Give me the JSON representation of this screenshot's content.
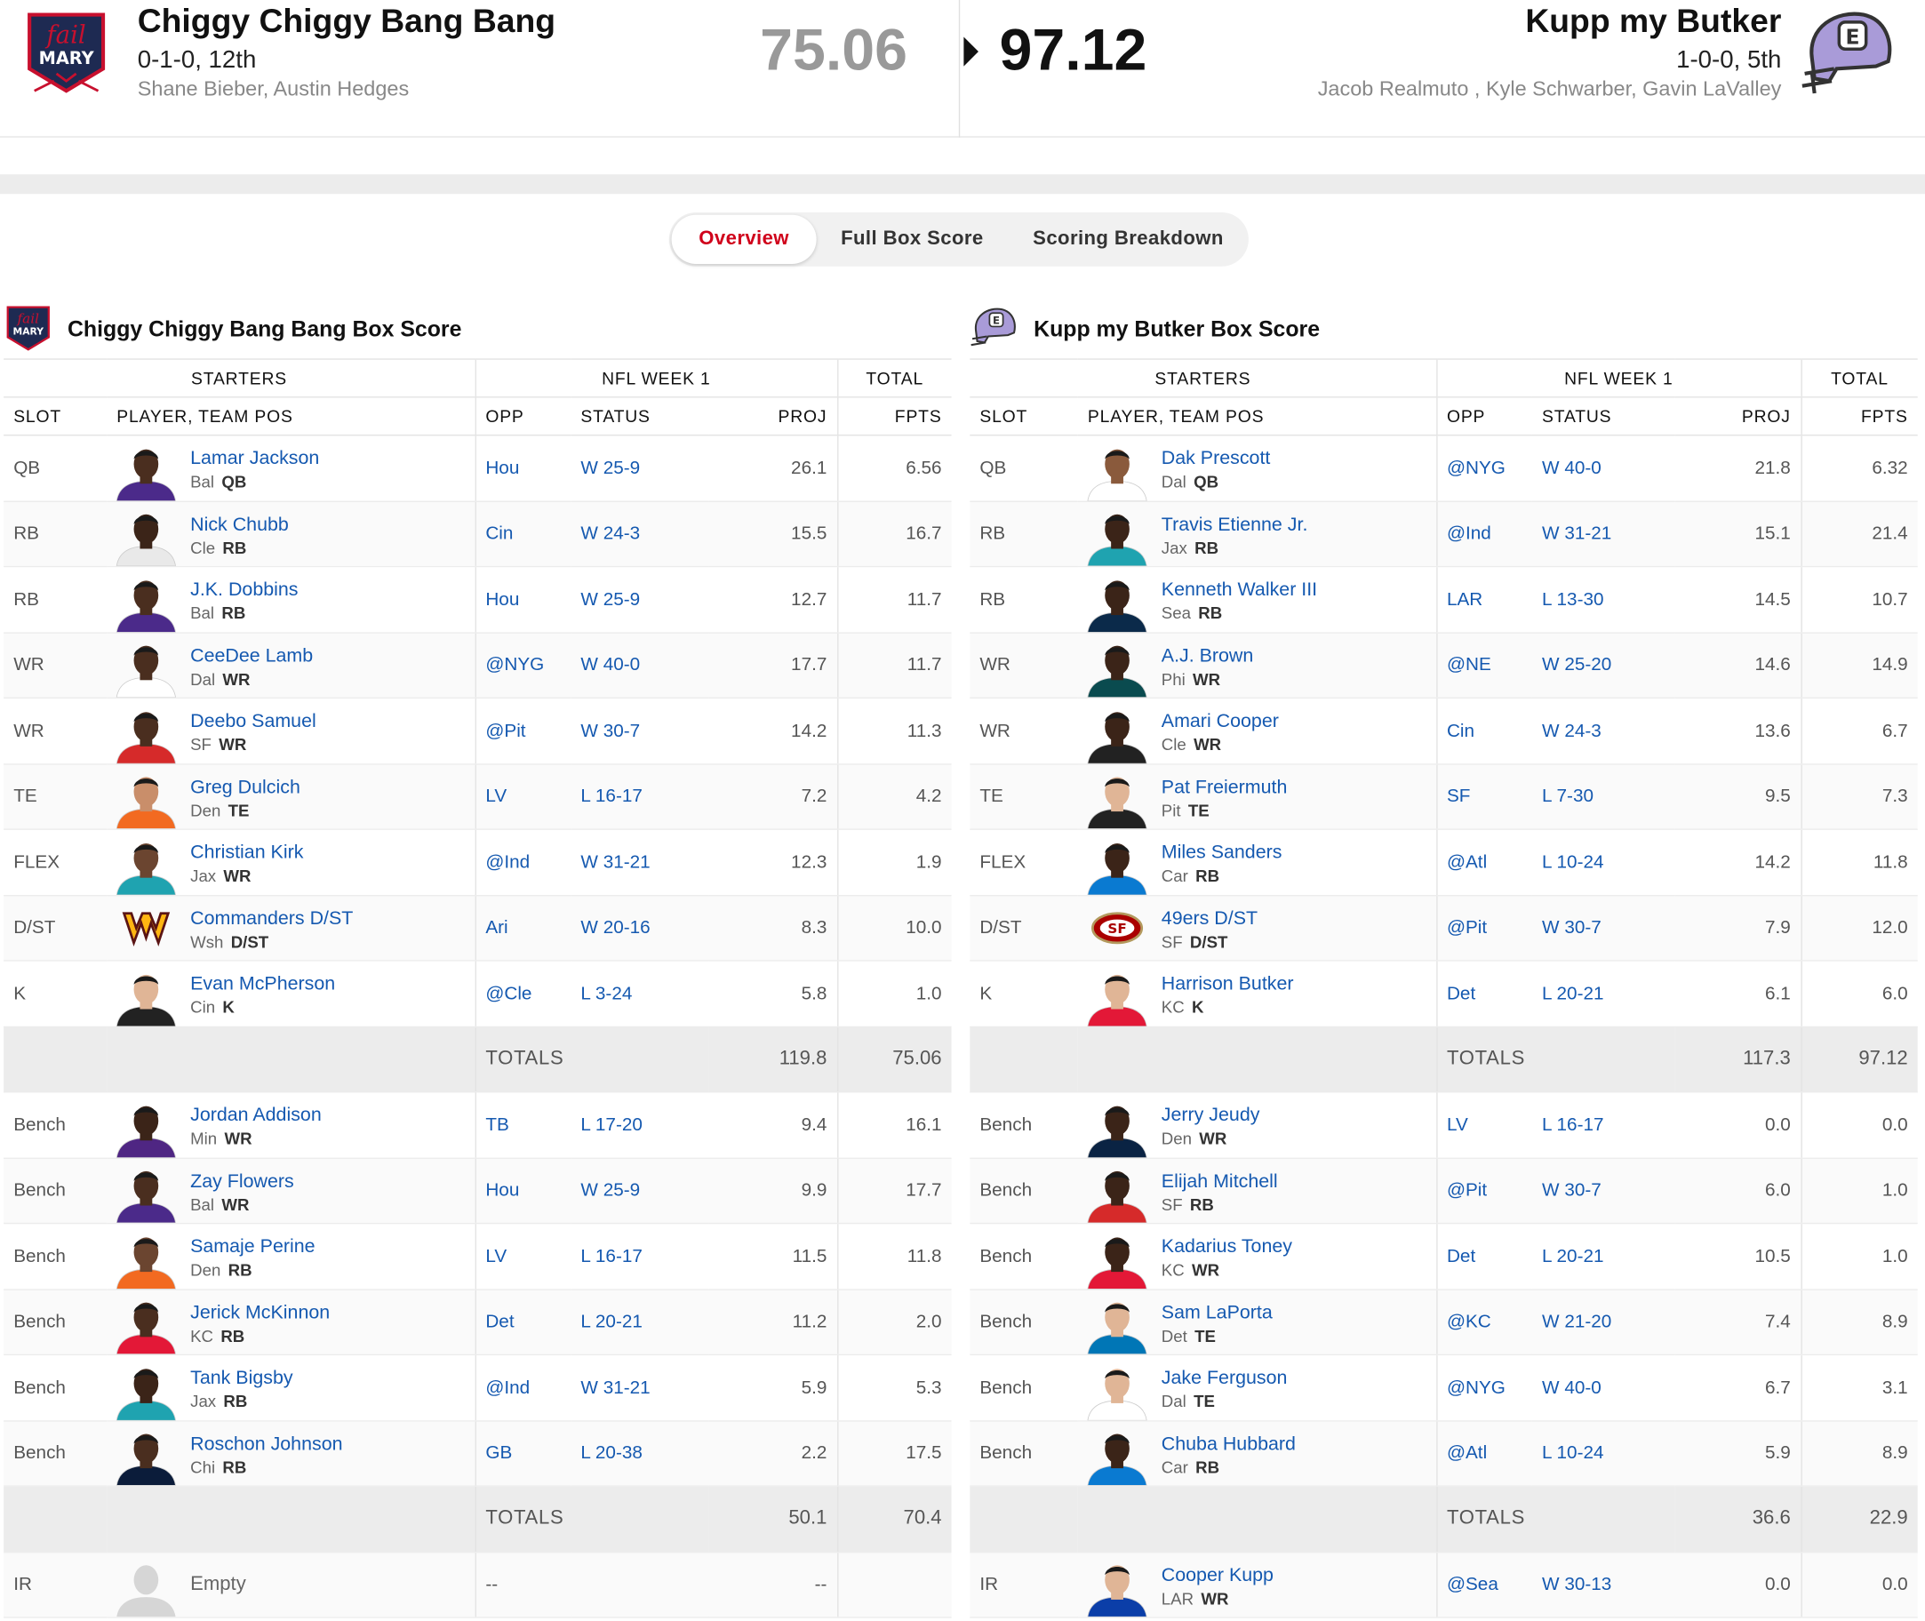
{
  "header": {
    "left": {
      "name": "Chiggy Chiggy Bang Bang",
      "record": "0-1-0, 12th",
      "players": "Shane Bieber, Austin Hedges",
      "score": "75.06",
      "logo": "fail-mary-logo"
    },
    "right": {
      "name": "Kupp my Butker",
      "record": "1-0-0, 5th",
      "players": "Jacob Realmuto , Kyle Schwarber, Gavin LaValley",
      "score": "97.12",
      "logo": "purple-helmet-logo"
    }
  },
  "tabs": [
    "Overview",
    "Full Box Score",
    "Scoring Breakdown"
  ],
  "active_tab": "Overview",
  "columns": {
    "starters": "STARTERS",
    "week": "NFL WEEK 1",
    "total": "TOTAL",
    "slot": "SLOT",
    "player": "PLAYER, TEAM POS",
    "opp": "OPP",
    "status": "STATUS",
    "proj": "PROJ",
    "fpts": "FPTS"
  },
  "left": {
    "title": "Chiggy Chiggy Bang Bang Box Score",
    "starters": [
      {
        "slot": "QB",
        "name": "Lamar Jackson",
        "team": "Bal",
        "pos": "QB",
        "opp": "Hou",
        "status": "W 25-9",
        "proj": "26.1",
        "fpts": "6.56",
        "jersey": "#4b2a8a",
        "skin": "#4a2e1f"
      },
      {
        "slot": "RB",
        "name": "Nick Chubb",
        "team": "Cle",
        "pos": "RB",
        "opp": "Cin",
        "status": "W 24-3",
        "proj": "15.5",
        "fpts": "16.7",
        "jersey": "#e9e9e9",
        "skin": "#3b2418"
      },
      {
        "slot": "RB",
        "name": "J.K. Dobbins",
        "team": "Bal",
        "pos": "RB",
        "opp": "Hou",
        "status": "W 25-9",
        "proj": "12.7",
        "fpts": "11.7",
        "jersey": "#4b2a8a",
        "skin": "#4a2e1f"
      },
      {
        "slot": "WR",
        "name": "CeeDee Lamb",
        "team": "Dal",
        "pos": "WR",
        "opp": "@NYG",
        "status": "W 40-0",
        "proj": "17.7",
        "fpts": "11.7",
        "jersey": "#ffffff",
        "skin": "#4a2e1f"
      },
      {
        "slot": "WR",
        "name": "Deebo Samuel",
        "team": "SF",
        "pos": "WR",
        "opp": "@Pit",
        "status": "W 30-7",
        "proj": "14.2",
        "fpts": "11.3",
        "jersey": "#d62a2a",
        "skin": "#4a2e1f"
      },
      {
        "slot": "TE",
        "name": "Greg Dulcich",
        "team": "Den",
        "pos": "TE",
        "opp": "LV",
        "status": "L 16-17",
        "proj": "7.2",
        "fpts": "4.2",
        "jersey": "#f26a21",
        "skin": "#c98e6a"
      },
      {
        "slot": "FLEX",
        "name": "Christian Kirk",
        "team": "Jax",
        "pos": "WR",
        "opp": "@Ind",
        "status": "W 31-21",
        "proj": "12.3",
        "fpts": "1.9",
        "jersey": "#1fa3b0",
        "skin": "#6b4530"
      },
      {
        "slot": "D/ST",
        "name": "Commanders D/ST",
        "team": "Wsh",
        "pos": "D/ST",
        "opp": "Ari",
        "status": "W 20-16",
        "proj": "8.3",
        "fpts": "10.0",
        "dst": "commanders-logo"
      },
      {
        "slot": "K",
        "name": "Evan McPherson",
        "team": "Cin",
        "pos": "K",
        "opp": "@Cle",
        "status": "L 3-24",
        "proj": "5.8",
        "fpts": "1.0",
        "jersey": "#222222",
        "skin": "#e0b596"
      }
    ],
    "starters_totals": {
      "label": "TOTALS",
      "proj": "119.8",
      "fpts": "75.06"
    },
    "bench": [
      {
        "slot": "Bench",
        "name": "Jordan Addison",
        "team": "Min",
        "pos": "WR",
        "opp": "TB",
        "status": "L 17-20",
        "proj": "9.4",
        "fpts": "16.1",
        "jersey": "#4f2683",
        "skin": "#3b2418"
      },
      {
        "slot": "Bench",
        "name": "Zay Flowers",
        "team": "Bal",
        "pos": "WR",
        "opp": "Hou",
        "status": "W 25-9",
        "proj": "9.9",
        "fpts": "17.7",
        "jersey": "#4b2a8a",
        "skin": "#4a2e1f"
      },
      {
        "slot": "Bench",
        "name": "Samaje Perine",
        "team": "Den",
        "pos": "RB",
        "opp": "LV",
        "status": "L 16-17",
        "proj": "11.5",
        "fpts": "11.8",
        "jersey": "#f26a21",
        "skin": "#6b4530"
      },
      {
        "slot": "Bench",
        "name": "Jerick McKinnon",
        "team": "KC",
        "pos": "RB",
        "opp": "Det",
        "status": "L 20-21",
        "proj": "11.2",
        "fpts": "2.0",
        "jersey": "#e31837",
        "skin": "#4a2e1f"
      },
      {
        "slot": "Bench",
        "name": "Tank Bigsby",
        "team": "Jax",
        "pos": "RB",
        "opp": "@Ind",
        "status": "W 31-21",
        "proj": "5.9",
        "fpts": "5.3",
        "jersey": "#1fa3b0",
        "skin": "#3b2418"
      },
      {
        "slot": "Bench",
        "name": "Roschon Johnson",
        "team": "Chi",
        "pos": "RB",
        "opp": "GB",
        "status": "L 20-38",
        "proj": "2.2",
        "fpts": "17.5",
        "jersey": "#0b1c3a",
        "skin": "#4a2e1f"
      }
    ],
    "bench_totals": {
      "label": "TOTALS",
      "proj": "50.1",
      "fpts": "70.4"
    },
    "ir": [
      {
        "slot": "IR",
        "name": "Empty",
        "team": "",
        "pos": "",
        "opp": "--",
        "status": "",
        "proj": "--",
        "fpts": "",
        "empty": true
      }
    ]
  },
  "right": {
    "title": "Kupp my Butker Box Score",
    "starters": [
      {
        "slot": "QB",
        "name": "Dak Prescott",
        "team": "Dal",
        "pos": "QB",
        "opp": "@NYG",
        "status": "W 40-0",
        "proj": "21.8",
        "fpts": "6.32",
        "jersey": "#ffffff",
        "skin": "#8a5a3c"
      },
      {
        "slot": "RB",
        "name": "Travis Etienne Jr.",
        "team": "Jax",
        "pos": "RB",
        "opp": "@Ind",
        "status": "W 31-21",
        "proj": "15.1",
        "fpts": "21.4",
        "jersey": "#1fa3b0",
        "skin": "#3b2418"
      },
      {
        "slot": "RB",
        "name": "Kenneth Walker III",
        "team": "Sea",
        "pos": "RB",
        "opp": "LAR",
        "status": "L 13-30",
        "proj": "14.5",
        "fpts": "10.7",
        "jersey": "#0b2a4a",
        "skin": "#3b2418"
      },
      {
        "slot": "WR",
        "name": "A.J. Brown",
        "team": "Phi",
        "pos": "WR",
        "opp": "@NE",
        "status": "W 25-20",
        "proj": "14.6",
        "fpts": "14.9",
        "jersey": "#0a4b4f",
        "skin": "#3b2418"
      },
      {
        "slot": "WR",
        "name": "Amari Cooper",
        "team": "Cle",
        "pos": "WR",
        "opp": "Cin",
        "status": "W 24-3",
        "proj": "13.6",
        "fpts": "6.7",
        "jersey": "#222222",
        "skin": "#3b2418"
      },
      {
        "slot": "TE",
        "name": "Pat Freiermuth",
        "team": "Pit",
        "pos": "TE",
        "opp": "SF",
        "status": "L 7-30",
        "proj": "9.5",
        "fpts": "7.3",
        "jersey": "#222222",
        "skin": "#e0b596"
      },
      {
        "slot": "FLEX",
        "name": "Miles Sanders",
        "team": "Car",
        "pos": "RB",
        "opp": "@Atl",
        "status": "L 10-24",
        "proj": "14.2",
        "fpts": "11.8",
        "jersey": "#0a7ad1",
        "skin": "#3b2418"
      },
      {
        "slot": "D/ST",
        "name": "49ers D/ST",
        "team": "SF",
        "pos": "D/ST",
        "opp": "@Pit",
        "status": "W 30-7",
        "proj": "7.9",
        "fpts": "12.0",
        "dst": "49ers-logo"
      },
      {
        "slot": "K",
        "name": "Harrison Butker",
        "team": "KC",
        "pos": "K",
        "opp": "Det",
        "status": "L 20-21",
        "proj": "6.1",
        "fpts": "6.0",
        "jersey": "#e31837",
        "skin": "#e0b596"
      }
    ],
    "starters_totals": {
      "label": "TOTALS",
      "proj": "117.3",
      "fpts": "97.12"
    },
    "bench": [
      {
        "slot": "Bench",
        "name": "Jerry Jeudy",
        "team": "Den",
        "pos": "WR",
        "opp": "LV",
        "status": "L 16-17",
        "proj": "0.0",
        "fpts": "0.0",
        "jersey": "#0a2343",
        "skin": "#3b2418"
      },
      {
        "slot": "Bench",
        "name": "Elijah Mitchell",
        "team": "SF",
        "pos": "RB",
        "opp": "@Pit",
        "status": "W 30-7",
        "proj": "6.0",
        "fpts": "1.0",
        "jersey": "#d62a2a",
        "skin": "#3b2418"
      },
      {
        "slot": "Bench",
        "name": "Kadarius Toney",
        "team": "KC",
        "pos": "WR",
        "opp": "Det",
        "status": "L 20-21",
        "proj": "10.5",
        "fpts": "1.0",
        "jersey": "#e31837",
        "skin": "#3b2418"
      },
      {
        "slot": "Bench",
        "name": "Sam LaPorta",
        "team": "Det",
        "pos": "TE",
        "opp": "@KC",
        "status": "W 21-20",
        "proj": "7.4",
        "fpts": "8.9",
        "jersey": "#0076b6",
        "skin": "#e0b596"
      },
      {
        "slot": "Bench",
        "name": "Jake Ferguson",
        "team": "Dal",
        "pos": "TE",
        "opp": "@NYG",
        "status": "W 40-0",
        "proj": "6.7",
        "fpts": "3.1",
        "jersey": "#ffffff",
        "skin": "#e0b596"
      },
      {
        "slot": "Bench",
        "name": "Chuba Hubbard",
        "team": "Car",
        "pos": "RB",
        "opp": "@Atl",
        "status": "L 10-24",
        "proj": "5.9",
        "fpts": "8.9",
        "jersey": "#0a7ad1",
        "skin": "#3b2418"
      }
    ],
    "bench_totals": {
      "label": "TOTALS",
      "proj": "36.6",
      "fpts": "22.9"
    },
    "ir": [
      {
        "slot": "IR",
        "name": "Cooper Kupp",
        "team": "LAR",
        "pos": "WR",
        "opp": "@Sea",
        "status": "W 30-13",
        "proj": "0.0",
        "fpts": "0.0",
        "jersey": "#0b3ea8",
        "skin": "#e0b596"
      }
    ]
  }
}
